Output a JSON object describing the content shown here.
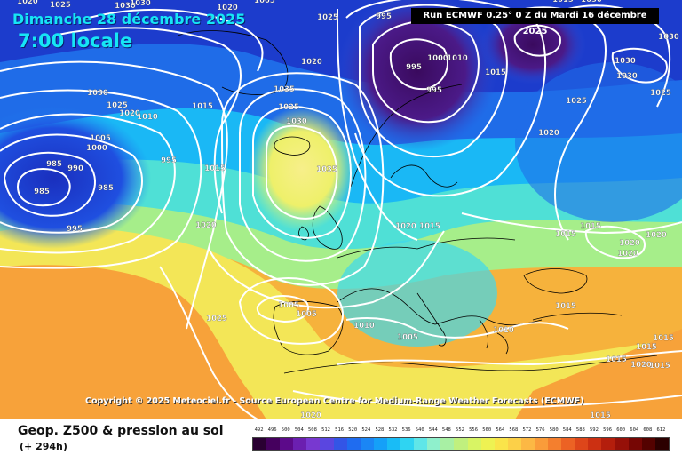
{
  "header": {
    "date": "Dimanche 28 décembre 2025",
    "local_time": "7:00 locale",
    "run_info": "Run ECMWF 0.25° 0 Z du Mardi 16 décembre 2025"
  },
  "footer": {
    "copyright": "Copyright © 2025 Meteociel.fr - Source European Centre for Medium-Range Weather Forecasts (ECMWF)",
    "product_title": "Geop. Z500 & pression au sol",
    "lead_time": "(+ 294h)"
  },
  "legend": {
    "labels": [
      "492",
      "496",
      "500",
      "504",
      "508",
      "512",
      "516",
      "520",
      "524",
      "528",
      "532",
      "536",
      "540",
      "544",
      "548",
      "552",
      "556",
      "560",
      "564",
      "568",
      "572",
      "576",
      "580",
      "584",
      "588",
      "592",
      "596",
      "600",
      "604",
      "608",
      "612"
    ],
    "colors": [
      "#2a0032",
      "#45005e",
      "#5c0a8a",
      "#6b1fb0",
      "#7838d0",
      "#5a46e0",
      "#3355e6",
      "#1f6cf0",
      "#1b86f5",
      "#15a0f8",
      "#19bcf6",
      "#2fd4f2",
      "#5fe6e8",
      "#8ff0cc",
      "#a8f0a4",
      "#c0f07e",
      "#d8f464",
      "#eef252",
      "#fae44a",
      "#fcd048",
      "#fcb844",
      "#fa9c3a",
      "#f47f2e",
      "#ec6224",
      "#de461a",
      "#cc3012",
      "#b41e0c",
      "#961008",
      "#760604",
      "#540200",
      "#2c0000"
    ]
  },
  "map_colors": {
    "deep_low": "#3a0a5e",
    "low": "#1e3cd8",
    "mid_low": "#16a8f5",
    "mid": "#44e0cc",
    "mid_high": "#9af07e",
    "high": "#f5ee58",
    "very_high": "#f9a838",
    "isobar": "#ffffff",
    "coast": "#000000"
  },
  "isobar_labels": [
    {
      "value": "1020"
    },
    {
      "value": "1025"
    },
    {
      "value": "1030"
    },
    {
      "value": "1030"
    },
    {
      "value": "1020"
    },
    {
      "value": "1005"
    },
    {
      "value": "1025"
    },
    {
      "value": "995"
    },
    {
      "value": "1000"
    },
    {
      "value": "1010"
    },
    {
      "value": "995"
    },
    {
      "value": "1015"
    },
    {
      "value": "1030"
    },
    {
      "value": "1030"
    },
    {
      "value": "1030"
    },
    {
      "value": "1025"
    },
    {
      "value": "1020"
    },
    {
      "value": "1010"
    },
    {
      "value": "1015"
    },
    {
      "value": "1035"
    },
    {
      "value": "1025"
    },
    {
      "value": "1030"
    },
    {
      "value": "995"
    },
    {
      "value": "1030"
    },
    {
      "value": "1005"
    },
    {
      "value": "1000"
    },
    {
      "value": "990"
    },
    {
      "value": "985"
    },
    {
      "value": "985"
    },
    {
      "value": "995"
    },
    {
      "value": "985"
    },
    {
      "value": "995"
    },
    {
      "value": "1035"
    },
    {
      "value": "1015"
    },
    {
      "value": "1025"
    },
    {
      "value": "1020"
    },
    {
      "value": "1020"
    },
    {
      "value": "1015"
    },
    {
      "value": "1015"
    },
    {
      "value": "1015"
    },
    {
      "value": "1020"
    },
    {
      "value": "1020"
    },
    {
      "value": "1020"
    },
    {
      "value": "1020"
    },
    {
      "value": "1025"
    },
    {
      "value": "1005"
    },
    {
      "value": "1005"
    },
    {
      "value": "1010"
    },
    {
      "value": "1005"
    },
    {
      "value": "1010"
    },
    {
      "value": "1015"
    },
    {
      "value": "1015"
    },
    {
      "value": "1015"
    },
    {
      "value": "1015"
    },
    {
      "value": "1015"
    },
    {
      "value": "1020"
    },
    {
      "value": "1015"
    },
    {
      "value": "1025"
    },
    {
      "value": "1015"
    },
    {
      "value": "1020"
    },
    {
      "value": "1030"
    },
    {
      "value": "1020"
    }
  ]
}
